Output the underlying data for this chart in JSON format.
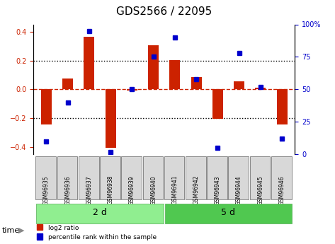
{
  "title": "GDS2566 / 22095",
  "samples": [
    "GSM96935",
    "GSM96936",
    "GSM96937",
    "GSM96938",
    "GSM96939",
    "GSM96940",
    "GSM96941",
    "GSM96942",
    "GSM96943",
    "GSM96944",
    "GSM96945",
    "GSM96946"
  ],
  "log2_ratio": [
    -0.245,
    0.075,
    0.365,
    -0.405,
    -0.01,
    0.305,
    0.205,
    0.085,
    -0.205,
    0.055,
    0.01,
    -0.245
  ],
  "pct_rank": [
    10,
    40,
    95,
    2,
    50,
    75,
    90,
    58,
    5,
    78,
    52,
    12
  ],
  "groups": [
    {
      "label": "2 d",
      "start": 0,
      "end": 6,
      "color": "#90ee90"
    },
    {
      "label": "5 d",
      "start": 6,
      "end": 12,
      "color": "#50c850"
    }
  ],
  "ylim_left": [
    -0.45,
    0.45
  ],
  "ylim_right": [
    0,
    100
  ],
  "yticks_left": [
    -0.4,
    -0.2,
    0.0,
    0.2,
    0.4
  ],
  "yticks_right": [
    0,
    25,
    50,
    75,
    100
  ],
  "bar_color": "#cc2200",
  "dot_color": "#0000cc",
  "grid_color": "black",
  "zero_line_color": "#cc2200",
  "bg_color": "white",
  "plot_bg": "white",
  "tick_label_size": 7,
  "title_size": 11
}
